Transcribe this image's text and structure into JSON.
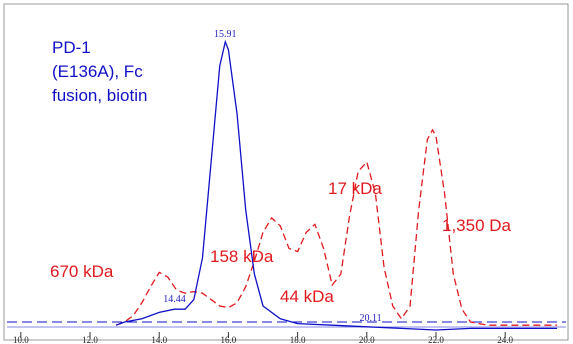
{
  "chart_data": {
    "type": "line",
    "title_lines": [
      "PD-1",
      "(E136A), Fc",
      "fusion, biotin"
    ],
    "title_color": "#1010c8",
    "annotations": [
      "670 kDa",
      "158 kDa",
      "44 kDa",
      "17 kDa",
      "1,350 Da"
    ],
    "annotation_color": "#e0191e",
    "peak_labels": [
      15.91,
      14.44,
      20.11
    ],
    "xlim": [
      9.6,
      25.7
    ],
    "xticks": [
      {
        "value": 10,
        "label": "10.0"
      },
      {
        "value": 12,
        "label": "12.0"
      },
      {
        "value": 14,
        "label": "14.0"
      },
      {
        "value": 16,
        "label": "16.0"
      },
      {
        "value": 18,
        "label": "18.0"
      },
      {
        "value": 20,
        "label": "20.0"
      },
      {
        "value": 22,
        "label": "22.0"
      },
      {
        "value": 24,
        "label": "24.0"
      }
    ],
    "ylim": [
      0,
      104
    ],
    "series": [
      {
        "color": "#e0191e",
        "dashed": true,
        "x": [
          12.75,
          13.0,
          13.25,
          13.5,
          13.75,
          14.0,
          14.25,
          14.5,
          14.75,
          15.0,
          15.25,
          15.5,
          15.75,
          16.0,
          16.25,
          16.5,
          16.75,
          17.0,
          17.25,
          17.5,
          17.75,
          18.0,
          18.25,
          18.5,
          18.75,
          19.0,
          19.25,
          19.5,
          19.75,
          20.0,
          20.25,
          20.5,
          20.75,
          21.0,
          21.25,
          21.5,
          21.75,
          21.9,
          22.0,
          22.25,
          22.5,
          22.75,
          23.0,
          23.5,
          24.0,
          25.5
        ],
        "values": [
          4,
          5,
          7,
          11,
          16,
          20.5,
          19,
          15,
          14,
          14.5,
          14,
          12,
          10,
          9.5,
          11,
          16,
          24,
          33,
          37.5,
          35,
          28,
          27,
          33,
          35.5,
          28,
          16.5,
          20,
          38,
          52,
          55,
          45,
          22,
          10,
          6,
          10,
          40,
          62,
          65,
          63,
          45,
          20,
          9,
          5,
          4,
          4,
          4
        ]
      },
      {
        "color": "#1010c8",
        "dashed": false,
        "x": [
          12.75,
          13.0,
          13.5,
          14.0,
          14.44,
          14.75,
          15.0,
          15.25,
          15.5,
          15.75,
          15.91,
          16.0,
          16.25,
          16.5,
          16.75,
          17.0,
          17.5,
          18.0,
          19.0,
          20.0,
          21.0,
          22.0,
          23.0,
          24.0,
          25.5
        ],
        "values": [
          4,
          5,
          6,
          8,
          9,
          9,
          12,
          25,
          55,
          85,
          92.5,
          90,
          70,
          40,
          20,
          10,
          6,
          4.5,
          4,
          3.5,
          3,
          2.5,
          3,
          3,
          3
        ]
      }
    ]
  }
}
